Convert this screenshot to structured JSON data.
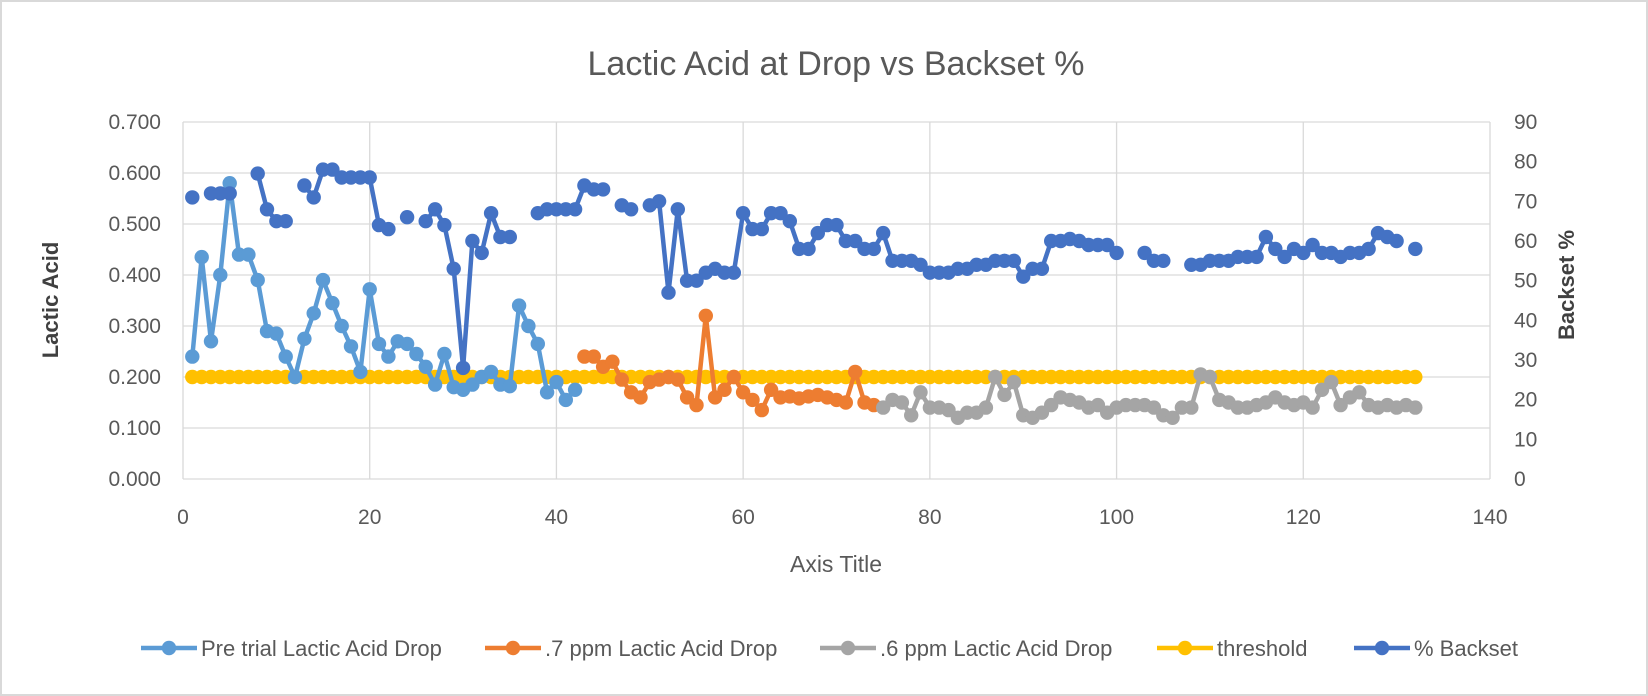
{
  "chart_data": {
    "type": "line",
    "title": "Lactic Acid at Drop vs Backset %",
    "xlabel": "Axis Title",
    "ylabel": "Lactic Acid",
    "y2label": "Backset %",
    "xlim": [
      0,
      140
    ],
    "ylim": [
      0,
      0.7
    ],
    "y2lim": [
      0,
      90
    ],
    "x_ticks": [
      "0",
      "20",
      "40",
      "60",
      "80",
      "100",
      "120",
      "140"
    ],
    "y_ticks": [
      "0.000",
      "0.100",
      "0.200",
      "0.300",
      "0.400",
      "0.500",
      "0.600",
      "0.700"
    ],
    "y2_ticks": [
      "0",
      "10",
      "20",
      "30",
      "40",
      "50",
      "60",
      "70",
      "80",
      "90"
    ],
    "grid": true,
    "legend_position": "bottom",
    "series": [
      {
        "name": "Pre trial Lactic Acid Drop",
        "axis": "left",
        "color": "#5B9BD5",
        "points": [
          [
            1,
            0.24
          ],
          [
            2,
            0.435
          ],
          [
            3,
            0.27
          ],
          [
            4,
            0.4
          ],
          [
            5,
            0.58
          ],
          [
            6,
            0.44
          ],
          [
            7,
            0.44
          ],
          [
            8,
            0.39
          ],
          [
            9,
            0.29
          ],
          [
            10,
            0.285
          ],
          [
            11,
            0.24
          ],
          [
            12,
            0.2
          ],
          [
            13,
            0.275
          ],
          [
            14,
            0.325
          ],
          [
            15,
            0.39
          ],
          [
            16,
            0.345
          ],
          [
            17,
            0.3
          ],
          [
            18,
            0.26
          ],
          [
            19,
            0.21
          ],
          [
            20,
            0.372
          ],
          [
            21,
            0.265
          ],
          [
            22,
            0.24
          ],
          [
            23,
            0.27
          ],
          [
            24,
            0.265
          ],
          [
            25,
            0.245
          ],
          [
            26,
            0.22
          ],
          [
            27,
            0.185
          ],
          [
            28,
            0.245
          ],
          [
            29,
            0.18
          ],
          [
            30,
            0.175
          ],
          [
            31,
            0.185
          ],
          [
            32,
            0.2
          ],
          [
            33,
            0.21
          ],
          [
            34,
            0.185
          ],
          [
            35,
            0.182
          ],
          [
            36,
            0.34
          ],
          [
            37,
            0.3
          ],
          [
            38,
            0.265
          ],
          [
            39,
            0.17
          ],
          [
            40,
            0.19
          ],
          [
            41,
            0.155
          ],
          [
            42,
            0.175
          ]
        ]
      },
      {
        "name": ".7 ppm Lactic Acid Drop",
        "axis": "left",
        "color": "#ED7D31",
        "points": [
          [
            43,
            0.24
          ],
          [
            44,
            0.24
          ],
          [
            45,
            0.22
          ],
          [
            46,
            0.23
          ],
          [
            47,
            0.195
          ],
          [
            48,
            0.17
          ],
          [
            49,
            0.16
          ],
          [
            50,
            0.19
          ],
          [
            51,
            0.195
          ],
          [
            52,
            0.2
          ],
          [
            53,
            0.195
          ],
          [
            54,
            0.16
          ],
          [
            55,
            0.145
          ],
          [
            56,
            0.32
          ],
          [
            57,
            0.16
          ],
          [
            58,
            0.175
          ],
          [
            59,
            0.2
          ],
          [
            60,
            0.17
          ],
          [
            61,
            0.155
          ],
          [
            62,
            0.135
          ],
          [
            63,
            0.175
          ],
          [
            64,
            0.16
          ],
          [
            65,
            0.162
          ],
          [
            66,
            0.158
          ],
          [
            67,
            0.162
          ],
          [
            68,
            0.165
          ],
          [
            69,
            0.16
          ],
          [
            70,
            0.155
          ],
          [
            71,
            0.15
          ],
          [
            72,
            0.21
          ],
          [
            73,
            0.15
          ],
          [
            74,
            0.145
          ]
        ]
      },
      {
        "name": ".6 ppm Lactic Acid Drop",
        "axis": "left",
        "color": "#A5A5A5",
        "points": [
          [
            75,
            0.14
          ],
          [
            76,
            0.155
          ],
          [
            77,
            0.15
          ],
          [
            78,
            0.125
          ],
          [
            79,
            0.17
          ],
          [
            80,
            0.14
          ],
          [
            81,
            0.14
          ],
          [
            82,
            0.135
          ],
          [
            83,
            0.12
          ],
          [
            84,
            0.13
          ],
          [
            85,
            0.13
          ],
          [
            86,
            0.14
          ],
          [
            87,
            0.2
          ],
          [
            88,
            0.165
          ],
          [
            89,
            0.19
          ],
          [
            90,
            0.125
          ],
          [
            91,
            0.12
          ],
          [
            92,
            0.13
          ],
          [
            93,
            0.145
          ],
          [
            94,
            0.16
          ],
          [
            95,
            0.155
          ],
          [
            96,
            0.15
          ],
          [
            97,
            0.14
          ],
          [
            98,
            0.145
          ],
          [
            99,
            0.13
          ],
          [
            100,
            0.14
          ],
          [
            101,
            0.145
          ],
          [
            102,
            0.145
          ],
          [
            103,
            0.145
          ],
          [
            104,
            0.14
          ],
          [
            105,
            0.125
          ],
          [
            106,
            0.12
          ],
          [
            107,
            0.14
          ],
          [
            108,
            0.14
          ],
          [
            109,
            0.205
          ],
          [
            110,
            0.2
          ],
          [
            111,
            0.155
          ],
          [
            112,
            0.15
          ],
          [
            113,
            0.14
          ],
          [
            114,
            0.14
          ],
          [
            115,
            0.145
          ],
          [
            116,
            0.15
          ],
          [
            117,
            0.16
          ],
          [
            118,
            0.15
          ],
          [
            119,
            0.145
          ],
          [
            120,
            0.15
          ],
          [
            121,
            0.14
          ],
          [
            122,
            0.175
          ],
          [
            123,
            0.19
          ],
          [
            124,
            0.145
          ],
          [
            125,
            0.16
          ],
          [
            126,
            0.17
          ],
          [
            127,
            0.145
          ],
          [
            128,
            0.14
          ],
          [
            129,
            0.145
          ],
          [
            130,
            0.14
          ],
          [
            131,
            0.145
          ],
          [
            132,
            0.14
          ]
        ]
      },
      {
        "name": "threshold",
        "axis": "left",
        "color": "#FFC000",
        "x_from": 1,
        "x_to": 132,
        "value": 0.2
      },
      {
        "name": "% Backset",
        "axis": "right",
        "color": "#4472C4",
        "points": [
          [
            1,
            71
          ],
          [
            2,
            null
          ],
          [
            3,
            72
          ],
          [
            4,
            72
          ],
          [
            5,
            72
          ],
          [
            6,
            null
          ],
          [
            7,
            null
          ],
          [
            8,
            77
          ],
          [
            9,
            68
          ],
          [
            10,
            65
          ],
          [
            11,
            65
          ],
          [
            12,
            null
          ],
          [
            13,
            74
          ],
          [
            14,
            71
          ],
          [
            15,
            78
          ],
          [
            16,
            78
          ],
          [
            17,
            76
          ],
          [
            18,
            76
          ],
          [
            19,
            76
          ],
          [
            20,
            76
          ],
          [
            21,
            64
          ],
          [
            22,
            63
          ],
          [
            23,
            null
          ],
          [
            24,
            66
          ],
          [
            25,
            null
          ],
          [
            26,
            65
          ],
          [
            27,
            68
          ],
          [
            28,
            64
          ],
          [
            29,
            53
          ],
          [
            30,
            28
          ],
          [
            31,
            60
          ],
          [
            32,
            57
          ],
          [
            33,
            67
          ],
          [
            34,
            61
          ],
          [
            35,
            61
          ],
          [
            36,
            null
          ],
          [
            37,
            null
          ],
          [
            38,
            67
          ],
          [
            39,
            68
          ],
          [
            40,
            68
          ],
          [
            41,
            68
          ],
          [
            42,
            68
          ],
          [
            43,
            74
          ],
          [
            44,
            73
          ],
          [
            45,
            73
          ],
          [
            46,
            null
          ],
          [
            47,
            69
          ],
          [
            48,
            68
          ],
          [
            49,
            null
          ],
          [
            50,
            69
          ],
          [
            51,
            70
          ],
          [
            52,
            47
          ],
          [
            53,
            68
          ],
          [
            54,
            50
          ],
          [
            55,
            50
          ],
          [
            56,
            52
          ],
          [
            57,
            53
          ],
          [
            58,
            52
          ],
          [
            59,
            52
          ],
          [
            60,
            67
          ],
          [
            61,
            63
          ],
          [
            62,
            63
          ],
          [
            63,
            67
          ],
          [
            64,
            67
          ],
          [
            65,
            65
          ],
          [
            66,
            58
          ],
          [
            67,
            58
          ],
          [
            68,
            62
          ],
          [
            69,
            64
          ],
          [
            70,
            64
          ],
          [
            71,
            60
          ],
          [
            72,
            60
          ],
          [
            73,
            58
          ],
          [
            74,
            58
          ],
          [
            75,
            62
          ],
          [
            76,
            55
          ],
          [
            77,
            55
          ],
          [
            78,
            55
          ],
          [
            79,
            54
          ],
          [
            80,
            52
          ],
          [
            81,
            52
          ],
          [
            82,
            52
          ],
          [
            83,
            53
          ],
          [
            84,
            53
          ],
          [
            85,
            54
          ],
          [
            86,
            54
          ],
          [
            87,
            55
          ],
          [
            88,
            55
          ],
          [
            89,
            55
          ],
          [
            90,
            51
          ],
          [
            91,
            53
          ],
          [
            92,
            53
          ],
          [
            93,
            60
          ],
          [
            94,
            60
          ],
          [
            95,
            60.5
          ],
          [
            96,
            60
          ],
          [
            97,
            59
          ],
          [
            98,
            59
          ],
          [
            99,
            59
          ],
          [
            100,
            57
          ],
          [
            101,
            null
          ],
          [
            102,
            null
          ],
          [
            103,
            57
          ],
          [
            104,
            55
          ],
          [
            105,
            55
          ],
          [
            106,
            null
          ],
          [
            107,
            null
          ],
          [
            108,
            54
          ],
          [
            109,
            54
          ],
          [
            110,
            55
          ],
          [
            111,
            55
          ],
          [
            112,
            55
          ],
          [
            113,
            56
          ],
          [
            114,
            56
          ],
          [
            115,
            56
          ],
          [
            116,
            61
          ],
          [
            117,
            58
          ],
          [
            118,
            56
          ],
          [
            119,
            58
          ],
          [
            120,
            57
          ],
          [
            121,
            59
          ],
          [
            122,
            57
          ],
          [
            123,
            57
          ],
          [
            124,
            56
          ],
          [
            125,
            57
          ],
          [
            126,
            57
          ],
          [
            127,
            58
          ],
          [
            128,
            62
          ],
          [
            129,
            61
          ],
          [
            130,
            60
          ],
          [
            131,
            null
          ],
          [
            132,
            58
          ]
        ]
      }
    ]
  }
}
